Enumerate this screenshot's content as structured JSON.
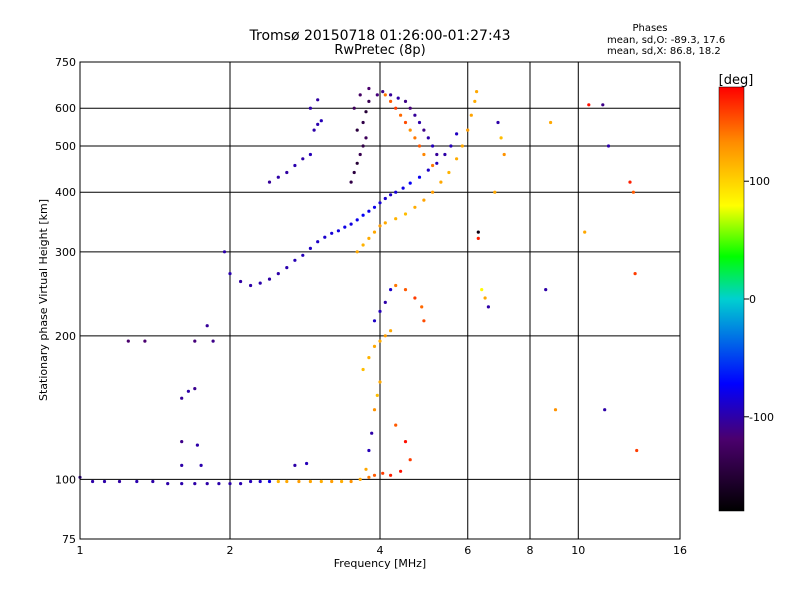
{
  "chart_data": {
    "type": "scatter",
    "title": "Tromsø 20150718 01:26:00-01:27:43",
    "subtitle": "RwPretec (8p)",
    "xlabel": "Frequency [MHz]",
    "ylabel": "Stationary phase Virtual Height [km]",
    "xscale": "log",
    "yscale": "log",
    "xlim": [
      1,
      16
    ],
    "ylim": [
      75,
      750
    ],
    "x_ticks": [
      1,
      2,
      4,
      6,
      8,
      10,
      16
    ],
    "y_ticks": [
      75,
      100,
      200,
      300,
      400,
      500,
      600,
      750
    ],
    "grid": true,
    "phase_stats": {
      "heading": "Phases",
      "line_o": "mean, sd,O: -89.3, 17.6",
      "line_x": "mean, sd,X:  86.8, 18.2"
    },
    "colorbar": {
      "label": "[deg]",
      "min": -180,
      "max": 180,
      "ticks": [
        100,
        0,
        -100
      ]
    },
    "series": [
      {
        "values": [
          [
            1.0,
            101,
            -105
          ],
          [
            1.06,
            99,
            -100
          ],
          [
            1.12,
            99,
            -100
          ],
          [
            1.2,
            99,
            -102
          ],
          [
            1.3,
            99,
            -98
          ],
          [
            1.4,
            99,
            -100
          ],
          [
            1.5,
            98,
            -100
          ],
          [
            1.6,
            98,
            -99
          ],
          [
            1.7,
            98,
            -100
          ],
          [
            1.8,
            98,
            -100
          ],
          [
            1.9,
            98,
            -99
          ],
          [
            2.0,
            98,
            -100
          ],
          [
            2.1,
            98,
            -98
          ],
          [
            2.2,
            99,
            -95
          ],
          [
            2.3,
            99,
            -90
          ],
          [
            2.4,
            99,
            -80
          ],
          [
            2.5,
            99,
            115
          ],
          [
            2.6,
            99,
            120
          ],
          [
            2.75,
            99,
            125
          ],
          [
            2.9,
            99,
            122
          ],
          [
            3.05,
            99,
            118
          ],
          [
            3.2,
            99,
            125
          ],
          [
            3.35,
            99,
            118
          ],
          [
            3.5,
            99,
            130
          ],
          [
            3.65,
            100,
            120
          ],
          [
            3.8,
            101,
            140
          ],
          [
            3.9,
            102,
            150
          ],
          [
            4.05,
            103,
            160
          ],
          [
            4.2,
            102,
            170
          ],
          [
            4.4,
            104,
            175
          ],
          [
            1.25,
            195,
            -120
          ],
          [
            1.35,
            195,
            -118
          ],
          [
            1.7,
            195,
            -115
          ],
          [
            1.85,
            195,
            -110
          ],
          [
            1.6,
            148,
            -105
          ],
          [
            1.65,
            153,
            -100
          ],
          [
            1.7,
            155,
            -108
          ],
          [
            1.6,
            120,
            -110
          ],
          [
            1.72,
            118,
            -100
          ],
          [
            1.6,
            107,
            -100
          ],
          [
            1.75,
            107,
            -98
          ],
          [
            2.7,
            107,
            -100
          ],
          [
            2.85,
            108,
            -95
          ],
          [
            1.8,
            210,
            -105
          ],
          [
            1.95,
            300,
            -100
          ],
          [
            2.0,
            270,
            -98
          ],
          [
            2.1,
            260,
            -102
          ],
          [
            2.2,
            255,
            -100
          ],
          [
            2.3,
            258,
            -99
          ],
          [
            2.4,
            263,
            -101
          ],
          [
            2.5,
            270,
            -100
          ],
          [
            2.6,
            278,
            -98
          ],
          [
            2.7,
            288,
            -96
          ],
          [
            2.8,
            295,
            -95
          ],
          [
            2.9,
            305,
            -92
          ],
          [
            3.0,
            315,
            -90
          ],
          [
            3.1,
            322,
            -88
          ],
          [
            3.2,
            328,
            -85
          ],
          [
            3.3,
            332,
            -82
          ],
          [
            3.4,
            338,
            -80
          ],
          [
            3.5,
            343,
            -82
          ],
          [
            3.6,
            350,
            -78
          ],
          [
            3.7,
            358,
            -75
          ],
          [
            3.8,
            365,
            -80
          ],
          [
            3.9,
            372,
            -78
          ],
          [
            4.0,
            380,
            -85
          ],
          [
            4.1,
            388,
            -88
          ],
          [
            4.2,
            395,
            -90
          ],
          [
            4.3,
            400,
            -86
          ],
          [
            4.45,
            408,
            -80
          ],
          [
            4.6,
            418,
            -75
          ],
          [
            4.8,
            430,
            -78
          ],
          [
            5.0,
            445,
            -90
          ],
          [
            5.2,
            460,
            -95
          ],
          [
            5.4,
            480,
            -100
          ],
          [
            5.55,
            500,
            -95
          ],
          [
            5.7,
            530,
            -92
          ],
          [
            2.4,
            420,
            -105
          ],
          [
            2.5,
            430,
            -100
          ],
          [
            2.6,
            440,
            -102
          ],
          [
            2.7,
            455,
            -98
          ],
          [
            2.8,
            470,
            -100
          ],
          [
            2.9,
            480,
            -95
          ],
          [
            2.95,
            540,
            -100
          ],
          [
            3.0,
            555,
            -98
          ],
          [
            3.05,
            565,
            -95
          ],
          [
            2.9,
            600,
            -100
          ],
          [
            3.0,
            625,
            -102
          ],
          [
            3.5,
            420,
            -140
          ],
          [
            3.55,
            440,
            -145
          ],
          [
            3.6,
            460,
            -150
          ],
          [
            3.65,
            480,
            -135
          ],
          [
            3.7,
            500,
            -140
          ],
          [
            3.75,
            520,
            -130
          ],
          [
            3.6,
            540,
            -145
          ],
          [
            3.7,
            560,
            -140
          ],
          [
            3.75,
            590,
            -150
          ],
          [
            3.8,
            620,
            -135
          ],
          [
            3.55,
            600,
            -130
          ],
          [
            3.65,
            640,
            -125
          ],
          [
            3.8,
            660,
            -120
          ],
          [
            3.95,
            640,
            -115
          ],
          [
            4.05,
            650,
            -110
          ],
          [
            4.2,
            640,
            -105
          ],
          [
            4.35,
            630,
            -100
          ],
          [
            4.5,
            620,
            -110
          ],
          [
            4.6,
            600,
            -115
          ],
          [
            4.7,
            580,
            -105
          ],
          [
            4.8,
            560,
            -100
          ],
          [
            4.9,
            540,
            -110
          ],
          [
            5.0,
            520,
            -100
          ],
          [
            5.1,
            500,
            -95
          ],
          [
            5.2,
            480,
            -105
          ],
          [
            3.6,
            300,
            120
          ],
          [
            3.7,
            310,
            115
          ],
          [
            3.8,
            320,
            118
          ],
          [
            3.9,
            330,
            120
          ],
          [
            4.0,
            340,
            125
          ],
          [
            4.1,
            345,
            120
          ],
          [
            4.3,
            352,
            115
          ],
          [
            4.5,
            360,
            110
          ],
          [
            4.7,
            372,
            118
          ],
          [
            4.9,
            385,
            122
          ],
          [
            5.1,
            400,
            125
          ],
          [
            5.3,
            420,
            120
          ],
          [
            5.5,
            440,
            115
          ],
          [
            5.7,
            470,
            118
          ],
          [
            5.85,
            500,
            120
          ],
          [
            6.0,
            540,
            125
          ],
          [
            6.1,
            580,
            122
          ],
          [
            6.2,
            620,
            118
          ],
          [
            6.25,
            650,
            120
          ],
          [
            4.1,
            640,
            140
          ],
          [
            4.2,
            620,
            150
          ],
          [
            4.3,
            600,
            160
          ],
          [
            4.4,
            580,
            145
          ],
          [
            4.5,
            560,
            155
          ],
          [
            4.6,
            540,
            130
          ],
          [
            4.7,
            520,
            140
          ],
          [
            4.8,
            500,
            150
          ],
          [
            4.9,
            480,
            135
          ],
          [
            5.1,
            455,
            140
          ],
          [
            3.7,
            170,
            110
          ],
          [
            3.8,
            180,
            115
          ],
          [
            3.9,
            190,
            120
          ],
          [
            4.0,
            195,
            118
          ],
          [
            4.1,
            200,
            125
          ],
          [
            4.2,
            205,
            120
          ],
          [
            3.9,
            215,
            -90
          ],
          [
            4.0,
            225,
            -95
          ],
          [
            4.1,
            235,
            -100
          ],
          [
            4.2,
            250,
            -90
          ],
          [
            4.3,
            255,
            140
          ],
          [
            4.5,
            250,
            150
          ],
          [
            4.7,
            240,
            160
          ],
          [
            4.85,
            230,
            145
          ],
          [
            4.9,
            215,
            155
          ],
          [
            3.75,
            105,
            120
          ],
          [
            3.8,
            115,
            -95
          ],
          [
            3.85,
            125,
            -100
          ],
          [
            3.9,
            140,
            130
          ],
          [
            3.95,
            150,
            110
          ],
          [
            4.0,
            160,
            120
          ],
          [
            4.3,
            130,
            150
          ],
          [
            4.5,
            120,
            175
          ],
          [
            4.6,
            110,
            160
          ],
          [
            6.3,
            320,
            170
          ],
          [
            6.3,
            330,
            -170
          ],
          [
            6.4,
            250,
            80
          ],
          [
            6.5,
            240,
            120
          ],
          [
            6.6,
            230,
            -100
          ],
          [
            6.9,
            560,
            -100
          ],
          [
            7.0,
            520,
            110
          ],
          [
            7.1,
            480,
            130
          ],
          [
            6.8,
            400,
            120
          ],
          [
            8.6,
            250,
            -100
          ],
          [
            8.8,
            560,
            120
          ],
          [
            9.0,
            140,
            130
          ],
          [
            10.3,
            330,
            120
          ],
          [
            10.5,
            610,
            175
          ],
          [
            11.2,
            610,
            -110
          ],
          [
            11.3,
            140,
            -100
          ],
          [
            11.5,
            500,
            -100
          ],
          [
            12.7,
            420,
            170
          ],
          [
            12.9,
            400,
            150
          ],
          [
            13.0,
            270,
            160
          ],
          [
            13.1,
            115,
            160
          ]
        ]
      }
    ]
  }
}
